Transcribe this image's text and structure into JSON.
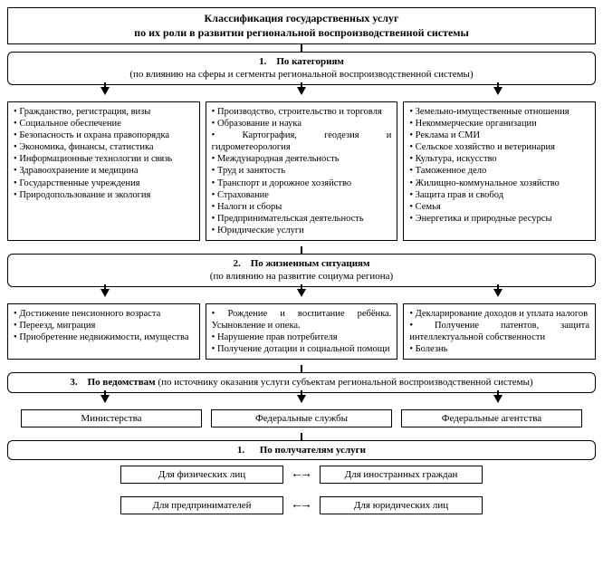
{
  "colors": {
    "border": "#000000",
    "bg": "#ffffff",
    "text": "#000000"
  },
  "title": {
    "line1": "Классификация государственных услуг",
    "line2": "по их роли в развитии региональной воспроизводственной системы"
  },
  "sections": {
    "s1": {
      "num": "1.",
      "title": "По категориям",
      "sub": "(по влиянию на сферы и сегменты региональной воспроизводственной системы)",
      "col1": [
        "Гражданство, регистрация, визы",
        "Социальное обеспечение",
        "Безопасность и охрана правопорядка",
        "Экономика, финансы, статистика",
        "Информационные технологии и связь",
        "Здравоохранение и медицина",
        "Государственные учреждения",
        "Природопользование и экология"
      ],
      "col2": [
        "Производство, строительство и торговля",
        "Образование и наука",
        "Картография, геодезия и гидрометеорология",
        "Международная деятельность",
        "Труд и занятость",
        "Транспорт и дорожное хозяйство",
        "Страхование",
        "Налоги и сборы",
        "Предпринимательская деятельность",
        "Юридические услуги"
      ],
      "col3": [
        "Земельно-имущественные отношения",
        "Некоммерческие организации",
        "Реклама и СМИ",
        "Сельское хозяйство и ветеринария",
        "Культура, искусство",
        "Таможенное дело",
        "Жилищно-коммунальное хозяйство",
        "Защита прав и свобод",
        "Семья",
        "Энергетика и природные ресурсы"
      ]
    },
    "s2": {
      "num": "2.",
      "title": "По жизненным ситуациям",
      "sub": "(по влиянию на развитие социума региона)",
      "col1": [
        "Достижение пенсионного возраста",
        "Переезд, миграция",
        "Приобретение недвижимости, имущества"
      ],
      "col2": [
        "Рождение и воспитание ребёнка. Усыновление и опека.",
        "Нарушение прав потребителя",
        "Получение дотации и социальной помощи"
      ],
      "col3": [
        "Декларирование доходов и уплата налогов",
        "Получение патентов, защита интеллектуальной собственности",
        "Болезнь"
      ]
    },
    "s3": {
      "num": "3.",
      "title": "По ведомствам",
      "sub": "(по источнику оказания услуги субъектам региональной  воспроизводственной системы)",
      "boxes": [
        "Министерства",
        "Федеральные службы",
        "Федеральные агентства"
      ]
    },
    "s4": {
      "num": "1.",
      "title": "По получателям услуги",
      "grid": {
        "tl": "Для физических лиц",
        "tr": "Для иностранных граждан",
        "bl": "Для предпринимателей",
        "br": "Для юридических лиц"
      }
    }
  }
}
